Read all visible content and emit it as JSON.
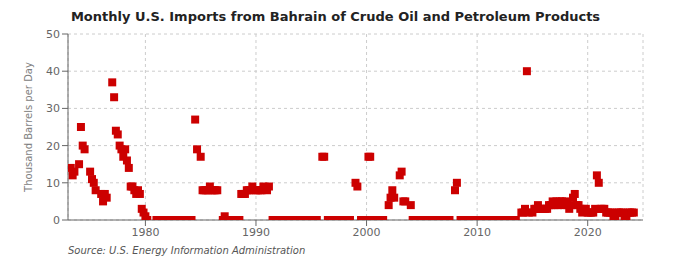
{
  "chart_data": {
    "type": "scatter",
    "title": "Monthly U.S. Imports from Bahrain of Crude Oil and Petroleum Products",
    "ylabel": "Thousand Barrels per Day",
    "annotation": "Source: U.S. Energy Information Administration",
    "color": "#cc0000",
    "marker": "square",
    "grid": true,
    "xlim": [
      1973.0,
      2025.0
    ],
    "ylim": [
      0,
      50
    ],
    "xticks": [
      1980,
      1990,
      2000,
      2010,
      2020
    ],
    "yticks": [
      0,
      10,
      20,
      30,
      40,
      50
    ],
    "x": [
      1973.25,
      1973.42,
      1973.58,
      1974.0,
      1974.17,
      1974.33,
      1974.5,
      1975.0,
      1975.17,
      1975.33,
      1975.5,
      1976.0,
      1976.17,
      1976.33,
      1976.5,
      1977.0,
      1977.17,
      1977.33,
      1977.5,
      1977.67,
      1977.83,
      1978.0,
      1978.17,
      1978.33,
      1978.5,
      1978.67,
      1978.83,
      1979.0,
      1979.17,
      1979.33,
      1979.5,
      1979.67,
      1979.83,
      1980.0,
      1980.17,
      1981.0,
      1981.17,
      1981.33,
      1981.5,
      1982.0,
      1982.17,
      1982.33,
      1982.5,
      1983.0,
      1983.17,
      1983.33,
      1983.5,
      1984.0,
      1984.17,
      1984.5,
      1984.67,
      1985.0,
      1985.17,
      1985.33,
      1985.5,
      1985.67,
      1985.83,
      1986.0,
      1986.17,
      1986.33,
      1986.5,
      1987.0,
      1987.17,
      1987.5,
      1987.67,
      1988.0,
      1988.17,
      1988.5,
      1988.67,
      1988.83,
      1989.0,
      1989.17,
      1989.33,
      1989.5,
      1989.67,
      1990.0,
      1990.17,
      1990.33,
      1990.5,
      1990.67,
      1991.0,
      1991.17,
      1991.5,
      1991.67,
      1992.0,
      1992.5,
      1993.0,
      1993.5,
      1994.0,
      1994.5,
      1995.0,
      1995.5,
      1996.0,
      1996.17,
      1996.5,
      1996.67,
      1997.0,
      1997.5,
      1998.0,
      1998.5,
      1999.0,
      1999.17,
      1999.5,
      1999.67,
      2000.0,
      2000.17,
      2000.33,
      2000.5,
      2000.67,
      2001.0,
      2001.5,
      2002.0,
      2002.17,
      2002.33,
      2002.5,
      2003.0,
      2003.17,
      2003.33,
      2003.5,
      2004.0,
      2004.17,
      2004.5,
      2004.67,
      2005.0,
      2005.5,
      2006.0,
      2006.5,
      2007.0,
      2007.5,
      2008.0,
      2008.17,
      2008.5,
      2008.67,
      2009.0,
      2009.5,
      2010.0,
      2010.5,
      2011.0,
      2011.5,
      2012.0,
      2012.5,
      2013.0,
      2013.5,
      2014.0,
      2014.17,
      2014.33,
      2014.5,
      2014.67,
      2015.0,
      2015.17,
      2015.33,
      2015.5,
      2015.67,
      2015.83,
      2016.0,
      2016.17,
      2016.33,
      2016.5,
      2016.67,
      2016.83,
      2017.0,
      2017.17,
      2017.33,
      2017.5,
      2017.67,
      2017.83,
      2018.0,
      2018.17,
      2018.33,
      2018.5,
      2018.67,
      2018.83,
      2019.0,
      2019.17,
      2019.33,
      2019.5,
      2019.67,
      2019.83,
      2020.0,
      2020.17,
      2020.33,
      2020.5,
      2020.67,
      2020.83,
      2021.0,
      2021.17,
      2021.33,
      2021.5,
      2021.67,
      2021.83,
      2022.0,
      2022.17,
      2022.33,
      2022.5,
      2022.67,
      2022.83,
      2023.0,
      2023.17,
      2023.33,
      2023.5,
      2023.67,
      2023.83,
      2024.0,
      2024.17
    ],
    "values": [
      14,
      12,
      13,
      15,
      25,
      20,
      19,
      13,
      11,
      10,
      8,
      7,
      5,
      7,
      6,
      37,
      33,
      24,
      23,
      20,
      19,
      17,
      19,
      16,
      14,
      9,
      9,
      8,
      7,
      8,
      7,
      3,
      2,
      1,
      0,
      0,
      0,
      0,
      0,
      0,
      0,
      0,
      0,
      0,
      0,
      0,
      0,
      0,
      0,
      27,
      19,
      17,
      8,
      8,
      8,
      8,
      9,
      8,
      8,
      8,
      8,
      0,
      1,
      0,
      0,
      0,
      0,
      0,
      7,
      7,
      7,
      8,
      8,
      8,
      9,
      8,
      8,
      8,
      8,
      9,
      8,
      9,
      0,
      0,
      0,
      0,
      0,
      0,
      0,
      0,
      0,
      0,
      17,
      17,
      0,
      0,
      0,
      0,
      0,
      0,
      10,
      9,
      0,
      0,
      0,
      17,
      17,
      0,
      0,
      0,
      0,
      4,
      6,
      8,
      6,
      12,
      13,
      5,
      5,
      4,
      0,
      0,
      0,
      0,
      0,
      0,
      0,
      0,
      0,
      8,
      10,
      0,
      0,
      0,
      0,
      0,
      0,
      0,
      0,
      0,
      0,
      0,
      0,
      2,
      2,
      3,
      40,
      2,
      2,
      3,
      3,
      4,
      3,
      3,
      3,
      3,
      3,
      4,
      4,
      5,
      4,
      5,
      4,
      5,
      5,
      4,
      5,
      4,
      3,
      4,
      6,
      7,
      4,
      4,
      3,
      2,
      3,
      3,
      2,
      2,
      2,
      2,
      3,
      12,
      10,
      3,
      3,
      3,
      2,
      2,
      2,
      2,
      1,
      1,
      2,
      2,
      2,
      2,
      1,
      1,
      2,
      2,
      2,
      2
    ]
  }
}
